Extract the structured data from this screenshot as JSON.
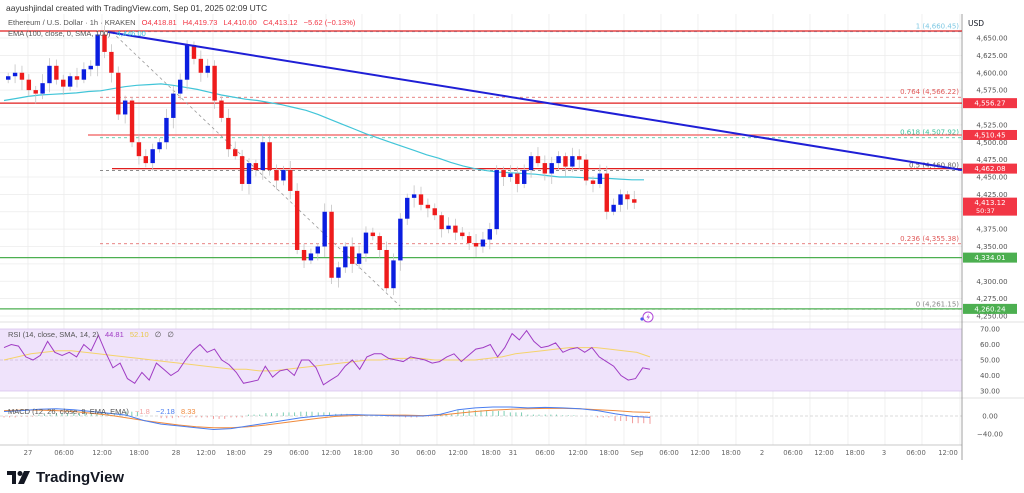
{
  "credit": "aayushjindal created with TradingView.com, Sep 01, 2025 02:09 UTC",
  "header": {
    "symbol": "Ethereum / U.S. Dollar · 1h · KRAKEN",
    "open": "O4,418.81",
    "high": "H4,419.73",
    "low": "L4,410.00",
    "close": "C4,413.12",
    "change": "−5.62 (−0.13%)"
  },
  "ema_legend": {
    "label": "EMA (100, close, 0, SMA, 100)",
    "value": "4,446.00"
  },
  "rsi_legend": {
    "label": "RSI (14, close, SMA, 14, 2)",
    "rsi": "44.81",
    "sma": "52.10",
    "extra1": "∅",
    "extra2": "∅"
  },
  "macd_legend": {
    "label": "MACD (12, 26, close, 9, EMA, EMA)",
    "hist": "−1.8",
    "macd": "−2.18",
    "signal": "8.33"
  },
  "price_axis": {
    "currency": "USD",
    "ticks": [
      "4,650.00",
      "4,625.00",
      "4,600.00",
      "4,575.00",
      "4,525.00",
      "4,500.00",
      "4,475.00",
      "4,450.00",
      "4,425.00",
      "4,375.00",
      "4,350.00",
      "4,300.00",
      "4,275.00",
      "4,250.00"
    ],
    "badges": [
      {
        "label": "4,556.27",
        "color": "#f23645"
      },
      {
        "label": "4,510.45",
        "color": "#f23645"
      },
      {
        "label": "4,462.08",
        "color": "#f23645"
      },
      {
        "label": "4,413.12",
        "sub": "50:37",
        "color": "#f23645"
      },
      {
        "label": "4,334.01",
        "color": "#4caf50"
      },
      {
        "label": "4,260.24",
        "color": "#4caf50"
      }
    ]
  },
  "rsi_axis": [
    "70.00",
    "60.00",
    "50.00",
    "40.00",
    "30.00"
  ],
  "macd_axis": [
    "0.00",
    "−40.00"
  ],
  "fib_levels": [
    {
      "label": "1 (4,660.45)",
      "color": "#7ec8e3"
    },
    {
      "label": "0.764 (4,566.22)",
      "color": "#e05a5a"
    },
    {
      "label": "0.618 (4,507.92)",
      "color": "#3cbf9a"
    },
    {
      "label": "0.5 (4,460.80)",
      "color": "#666666"
    },
    {
      "label": "0.236 (4,355.38)",
      "color": "#e05a5a"
    },
    {
      "label": "0 (4,261.15)",
      "color": "#888888"
    }
  ],
  "time_axis": [
    "27",
    "06:00",
    "12:00",
    "18:00",
    "28",
    "12:00",
    "18:00",
    "29",
    "06:00",
    "12:00",
    "18:00",
    "30",
    "06:00",
    "12:00",
    "18:00",
    "31",
    "06:00",
    "12:00",
    "18:00",
    "Sep",
    "06:00",
    "12:00",
    "18:00",
    "2",
    "06:00",
    "12:00",
    "18:00",
    "3",
    "06:00",
    "12:00",
    "18:00"
  ],
  "brand": "TradingView",
  "colors": {
    "up": "#0b1ee0",
    "down": "#ee1c1c",
    "ema": "#41c5d8",
    "trendline": "#1f1fd6",
    "resistance": "#e01e1e",
    "support": "#4caf50",
    "rsi": "#a03cc4",
    "rsi_ma": "#f5d36b",
    "macd": "#4a7ef0",
    "signal": "#f08a3c"
  },
  "chart_data": {
    "type": "candlestick",
    "title": "Ethereum / U.S. Dollar · 1h · KRAKEN",
    "xlabel": "",
    "ylabel": "USD",
    "ylim": [
      4245,
      4665
    ],
    "last_price": 4413.12,
    "ohlc_last": {
      "open": 4418.81,
      "high": 4419.73,
      "low": 4410.0,
      "close": 4413.12,
      "change": -5.62,
      "change_pct": -0.13
    },
    "ema_100": 4446.0,
    "horizontal_levels": {
      "resistance": [
        4556.27,
        4510.45,
        4462.08
      ],
      "support": [
        4334.01,
        4260.24
      ]
    },
    "fibonacci": [
      {
        "ratio": 1,
        "price": 4660.45
      },
      {
        "ratio": 0.764,
        "price": 4566.22
      },
      {
        "ratio": 0.618,
        "price": 4507.92
      },
      {
        "ratio": 0.5,
        "price": 4460.8
      },
      {
        "ratio": 0.236,
        "price": 4355.38
      },
      {
        "ratio": 0,
        "price": 4261.15
      }
    ],
    "trendline": {
      "from": {
        "time": "Aug 27 18:00",
        "price": 4662
      },
      "to": {
        "time": "Sep 01 12:00",
        "price": 4462
      }
    },
    "approx_closes": [
      4595,
      4600,
      4590,
      4575,
      4570,
      4585,
      4610,
      4590,
      4580,
      4595,
      4590,
      4605,
      4610,
      4655,
      4630,
      4600,
      4540,
      4560,
      4500,
      4480,
      4470,
      4490,
      4500,
      4535,
      4570,
      4590,
      4640,
      4620,
      4600,
      4610,
      4560,
      4535,
      4490,
      4480,
      4440,
      4470,
      4460,
      4500,
      4460,
      4445,
      4460,
      4430,
      4345,
      4330,
      4340,
      4350,
      4400,
      4305,
      4320,
      4350,
      4325,
      4340,
      4370,
      4365,
      4345,
      4290,
      4330,
      4390,
      4420,
      4425,
      4410,
      4405,
      4395,
      4375,
      4380,
      4370,
      4365,
      4355,
      4350,
      4360,
      4375,
      4460,
      4450,
      4455,
      4440,
      4460,
      4480,
      4470,
      4455,
      4470,
      4480,
      4465,
      4480,
      4475,
      4445,
      4440,
      4455,
      4400,
      4410,
      4425,
      4418,
      4413
    ],
    "rsi": {
      "value": 44.81,
      "ma": 52.1,
      "band": [
        30,
        70
      ]
    },
    "macd": {
      "histogram": -1.8,
      "macd": -2.18,
      "signal": 8.33
    }
  }
}
